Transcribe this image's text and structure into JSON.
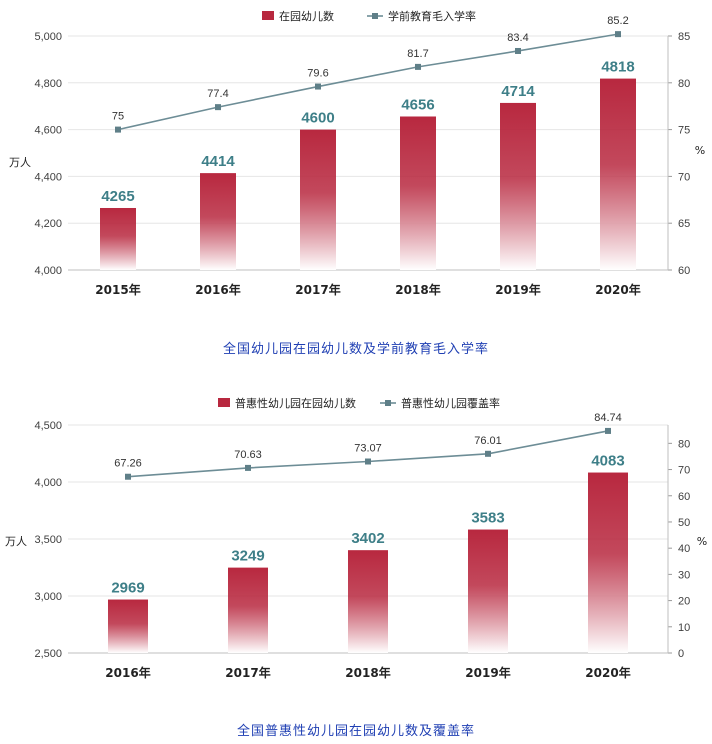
{
  "colors": {
    "bar_top": "#b8283f",
    "bar_bottom": "#ffffff",
    "line": "#6d8d96",
    "marker": "#5f7f88",
    "bar_label": "#3e7f88",
    "caption": "#1f3fb3",
    "grid": "#e6e6e6"
  },
  "chart_data": [
    {
      "type": "bar",
      "title": "全国幼儿园在园幼儿数及学前教育毛入学率",
      "categories": [
        "2015年",
        "2016年",
        "2017年",
        "2018年",
        "2019年",
        "2020年"
      ],
      "ylabel": "万人",
      "y2label": "%",
      "ylim": [
        4000,
        5000
      ],
      "yticks": [
        "4,000",
        "4,200",
        "4,400",
        "4,600",
        "4,800",
        "5,000"
      ],
      "y2lim": [
        60,
        85
      ],
      "y2ticks": [
        "60",
        "65",
        "70",
        "75",
        "80",
        "85"
      ],
      "grid": true,
      "legend_position": "top",
      "series": [
        {
          "name": "在园幼儿数",
          "kind": "bar",
          "axis": "left",
          "values": [
            4265,
            4414,
            4600,
            4656,
            4714,
            4818
          ],
          "labels": [
            "4265",
            "4414",
            "4600",
            "4656",
            "4714",
            "4818"
          ]
        },
        {
          "name": "学前教育毛入学率",
          "kind": "line",
          "axis": "right",
          "values": [
            75,
            77.4,
            79.6,
            81.7,
            83.4,
            85.2
          ],
          "labels": [
            "75",
            "77.4",
            "79.6",
            "81.7",
            "83.4",
            "85.2"
          ]
        }
      ]
    },
    {
      "type": "bar",
      "title": "全国普惠性幼儿园在园幼儿数及覆盖率",
      "categories": [
        "2016年",
        "2017年",
        "2018年",
        "2019年",
        "2020年"
      ],
      "ylabel": "万人",
      "y2label": "%",
      "ylim": [
        2500,
        4500
      ],
      "yticks": [
        "2,500",
        "3,000",
        "3,500",
        "4,000",
        "4,500"
      ],
      "y2lim": [
        0,
        87
      ],
      "y2ticks": [
        "0",
        "10",
        "20",
        "30",
        "40",
        "50",
        "60",
        "70",
        "80"
      ],
      "grid": true,
      "legend_position": "top",
      "series": [
        {
          "name": "普惠性幼儿园在园幼儿数",
          "kind": "bar",
          "axis": "left",
          "values": [
            2969,
            3249,
            3402,
            3583,
            4083
          ],
          "labels": [
            "2969",
            "3249",
            "3402",
            "3583",
            "4083"
          ]
        },
        {
          "name": "普惠性幼儿园覆盖率",
          "kind": "line",
          "axis": "right",
          "values": [
            67.26,
            70.63,
            73.07,
            76.01,
            84.74
          ],
          "labels": [
            "67.26",
            "70.63",
            "73.07",
            "76.01",
            "84.74"
          ]
        }
      ]
    }
  ]
}
